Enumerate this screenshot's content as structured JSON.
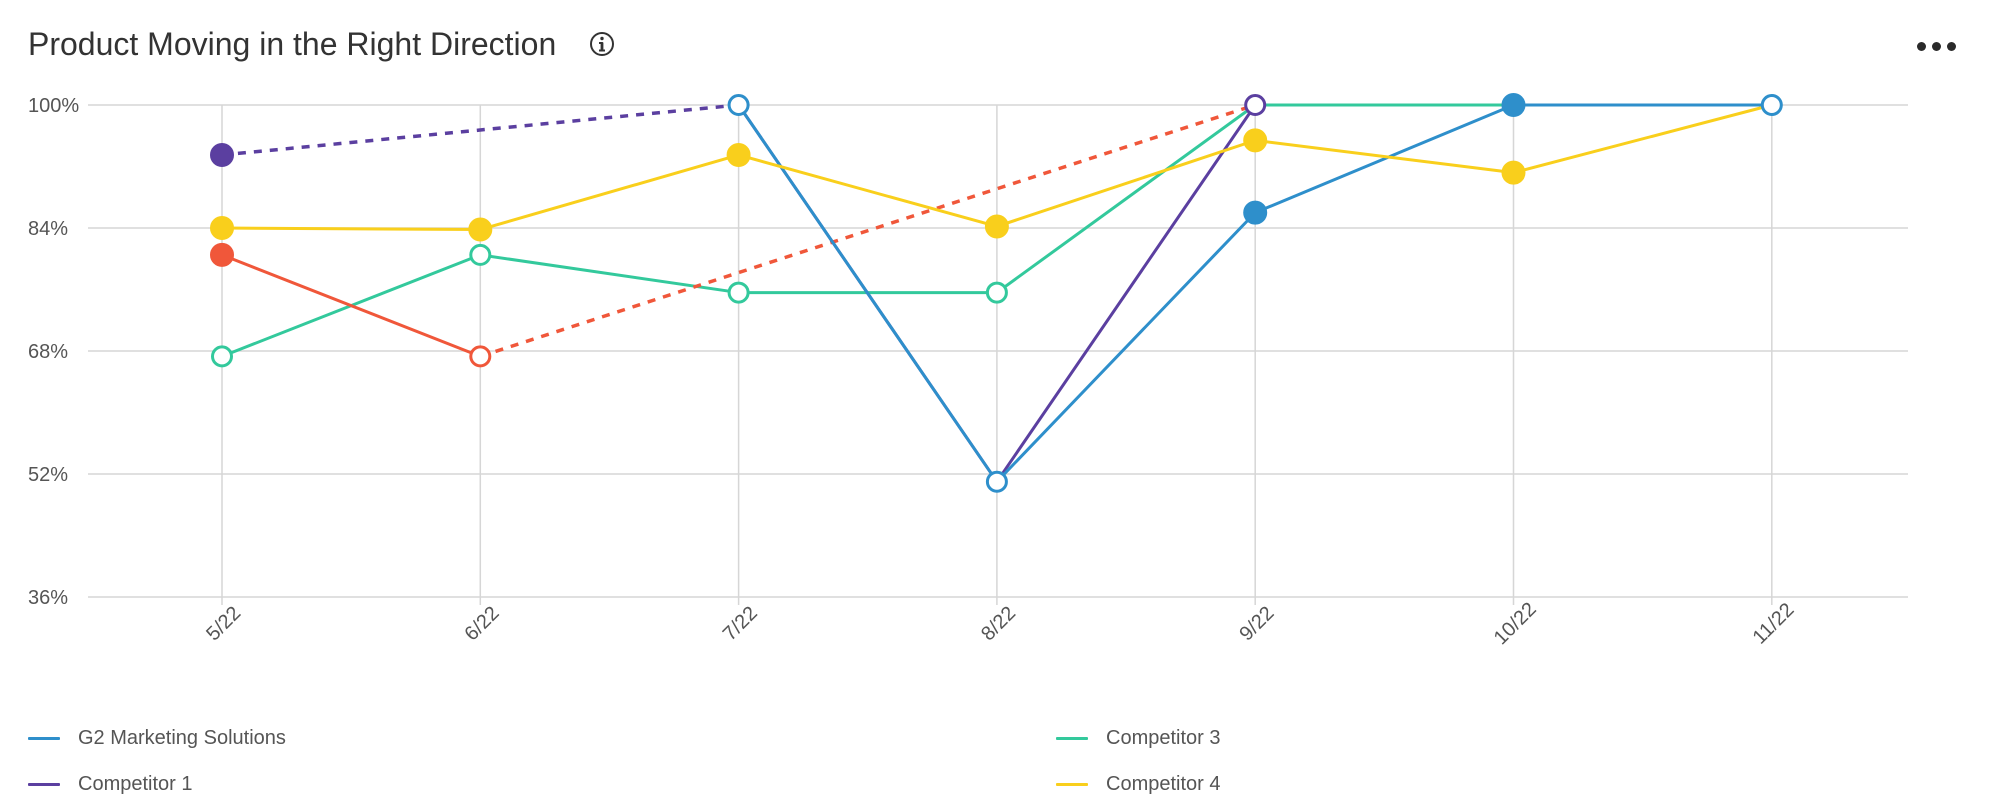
{
  "header": {
    "title": "Product Moving in the Right Direction",
    "info_icon": "info-circle-icon",
    "more_icon": "more-horizontal-icon"
  },
  "colors": {
    "g2": "#2e8fcb",
    "competitor1": "#5b3fa0",
    "competitor2": "#f0573a",
    "competitor3": "#33c99c",
    "competitor4": "#f9cf1c",
    "grid": "#d6d6d6",
    "axis_text": "#555555"
  },
  "chart_data": {
    "type": "line",
    "x": [
      "5/22",
      "6/22",
      "7/22",
      "8/22",
      "9/22",
      "10/22",
      "11/22"
    ],
    "y_ticks": [
      "100%",
      "84%",
      "68%",
      "52%",
      "36%"
    ],
    "ylim": [
      36,
      100
    ],
    "grid": true,
    "legend_position": "bottom",
    "series": [
      {
        "name": "G2 Marketing Solutions",
        "color": "#2e8fcb",
        "values": [
          null,
          null,
          100,
          51,
          86,
          100,
          100
        ],
        "markers": [
          null,
          null,
          "hollow",
          "hollow",
          "filled",
          "filled",
          "hollow"
        ],
        "dashed_segments": []
      },
      {
        "name": "Competitor 1",
        "color": "#5b3fa0",
        "values": [
          93.5,
          null,
          100,
          51,
          100,
          null,
          null
        ],
        "markers": [
          "filled",
          null,
          null,
          null,
          "hollow",
          null,
          null
        ],
        "dashed_segments": [
          [
            0,
            2
          ]
        ]
      },
      {
        "name": "",
        "color": "#f0573a",
        "values": [
          80.5,
          67.3,
          null,
          null,
          100,
          null,
          null
        ],
        "markers": [
          "filled",
          "hollow",
          null,
          null,
          null,
          null,
          null
        ],
        "dashed_segments": [
          [
            1,
            4
          ]
        ]
      },
      {
        "name": "Competitor 3",
        "color": "#33c99c",
        "values": [
          67.3,
          80.5,
          75.6,
          75.6,
          100,
          100,
          100
        ],
        "markers": [
          "hollow",
          "hollow",
          "hollow",
          "hollow",
          null,
          null,
          null
        ],
        "dashed_segments": []
      },
      {
        "name": "Competitor 4",
        "color": "#f9cf1c",
        "values": [
          84,
          83.8,
          93.5,
          84.2,
          95.4,
          91.2,
          100
        ],
        "markers": [
          "filled",
          "filled",
          "filled",
          "filled",
          "filled",
          "filled",
          null
        ],
        "dashed_segments": []
      }
    ]
  },
  "legend": {
    "items": [
      {
        "label": "G2 Marketing Solutions",
        "color": "#2e8fcb"
      },
      {
        "label": "Competitor 1",
        "color": "#5b3fa0"
      },
      {
        "label": "Competitor 3",
        "color": "#33c99c"
      },
      {
        "label": "Competitor 4",
        "color": "#f9cf1c"
      }
    ]
  }
}
